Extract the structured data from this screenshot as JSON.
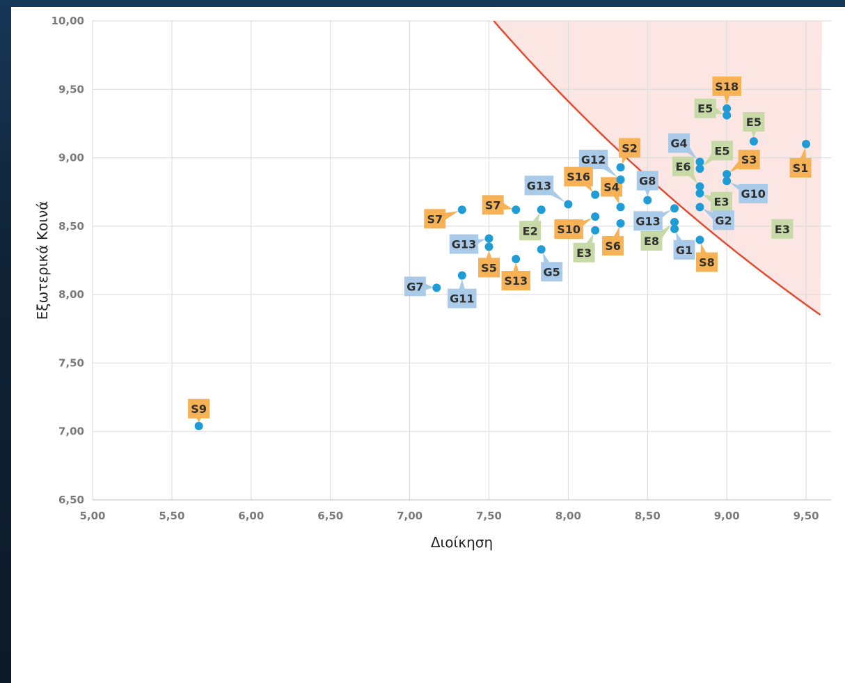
{
  "chart_data": {
    "type": "scatter",
    "title": "",
    "xlabel": "Διοίκηση",
    "ylabel": "Εξωτερικά Κοινά",
    "xlim": [
      5.0,
      9.6
    ],
    "ylim": [
      6.5,
      10.0
    ],
    "x_ticks": [
      "5,00",
      "5,50",
      "6,00",
      "6,50",
      "7,00",
      "7,50",
      "8,00",
      "8,50",
      "9,00",
      "9,50"
    ],
    "y_ticks": [
      "6,50",
      "7,00",
      "7,50",
      "8,00",
      "8,50",
      "9,00",
      "9,50",
      "10,00"
    ],
    "grid": true,
    "point_color": "#1f9bd6",
    "curve_color": "#e34a2f",
    "region_color": "#fbe3e0",
    "curve_xy_product": 75.3,
    "category_colors": {
      "S": "#f6b254",
      "G": "#a9cbe9",
      "E": "#c6d9a6"
    },
    "points": [
      {
        "label": "S18",
        "x": 9.0,
        "y": 9.36
      },
      {
        "label": "E5",
        "x": 9.0,
        "y": 9.31
      },
      {
        "label": "E5",
        "x": 9.17,
        "y": 9.12
      },
      {
        "label": "S1",
        "x": 9.5,
        "y": 9.1
      },
      {
        "label": "G4",
        "x": 8.83,
        "y": 8.97
      },
      {
        "label": "E5",
        "x": 8.83,
        "y": 8.92
      },
      {
        "label": "S2",
        "x": 8.33,
        "y": 8.93
      },
      {
        "label": "G12",
        "x": 8.33,
        "y": 8.84
      },
      {
        "label": "S3",
        "x": 9.0,
        "y": 8.88
      },
      {
        "label": "G10",
        "x": 9.0,
        "y": 8.83
      },
      {
        "label": "E6",
        "x": 8.83,
        "y": 8.79
      },
      {
        "label": "E3",
        "x": 8.83,
        "y": 8.74
      },
      {
        "label": "S16",
        "x": 8.17,
        "y": 8.73
      },
      {
        "label": "G8",
        "x": 8.5,
        "y": 8.69
      },
      {
        "label": "G13",
        "x": 8.0,
        "y": 8.66
      },
      {
        "label": "S4",
        "x": 8.33,
        "y": 8.64
      },
      {
        "label": "G2",
        "x": 8.83,
        "y": 8.64
      },
      {
        "label": "G13",
        "x": 8.67,
        "y": 8.63
      },
      {
        "label": "S7",
        "x": 7.33,
        "y": 8.62
      },
      {
        "label": "S7",
        "x": 7.67,
        "y": 8.62
      },
      {
        "label": "E2",
        "x": 7.83,
        "y": 8.62
      },
      {
        "label": "S10",
        "x": 8.17,
        "y": 8.57
      },
      {
        "label": "E8",
        "x": 8.67,
        "y": 8.53
      },
      {
        "label": "S6",
        "x": 8.33,
        "y": 8.52
      },
      {
        "label": "G1",
        "x": 8.67,
        "y": 8.48
      },
      {
        "label": "E3",
        "x": 8.17,
        "y": 8.47
      },
      {
        "label": "G13",
        "x": 7.5,
        "y": 8.41
      },
      {
        "label": "S8",
        "x": 8.83,
        "y": 8.4
      },
      {
        "label": "E3",
        "x": 9.35,
        "y": 8.48
      },
      {
        "label": "S5",
        "x": 7.5,
        "y": 8.35
      },
      {
        "label": "G5",
        "x": 7.83,
        "y": 8.33
      },
      {
        "label": "S13",
        "x": 7.67,
        "y": 8.26
      },
      {
        "label": "G11",
        "x": 7.33,
        "y": 8.14
      },
      {
        "label": "G7",
        "x": 7.17,
        "y": 8.05
      },
      {
        "label": "S9",
        "x": 5.67,
        "y": 7.04
      }
    ]
  }
}
